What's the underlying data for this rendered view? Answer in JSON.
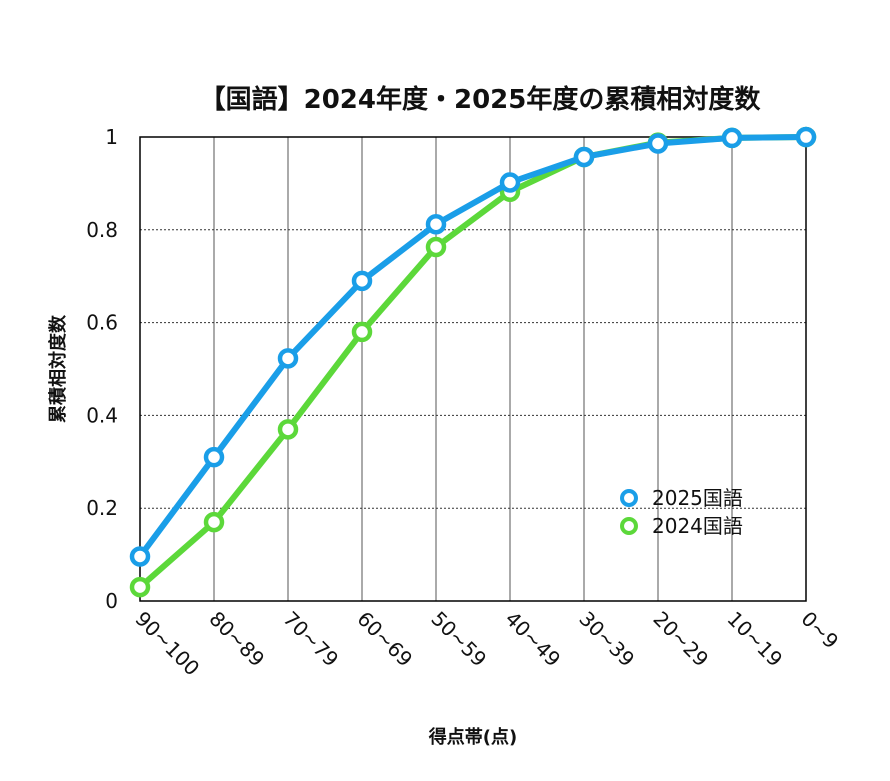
{
  "chart_data": {
    "type": "line",
    "title": "【国語】2024年度・2025年度の累積相対度数",
    "xlabel": "得点帯(点)",
    "ylabel": "累積相対度数",
    "categories": [
      "90~100",
      "80~89",
      "70~79",
      "60~69",
      "50~59",
      "40~49",
      "30~39",
      "20~29",
      "10~19",
      "0~9"
    ],
    "ylim": [
      0,
      1
    ],
    "yticks": [
      "0",
      "0.2",
      "0.4",
      "0.6",
      "0.8",
      "1"
    ],
    "grid": true,
    "legend_position": "bottom-right",
    "series": [
      {
        "name": "2025国語",
        "color": "#1a9ee8",
        "values": [
          0.096,
          0.31,
          0.523,
          0.69,
          0.812,
          0.902,
          0.957,
          0.986,
          0.998,
          1.0
        ]
      },
      {
        "name": "2024国語",
        "color": "#5cd83a",
        "values": [
          0.03,
          0.17,
          0.37,
          0.58,
          0.763,
          0.882,
          0.957,
          0.988,
          0.998,
          1.0
        ]
      }
    ]
  }
}
